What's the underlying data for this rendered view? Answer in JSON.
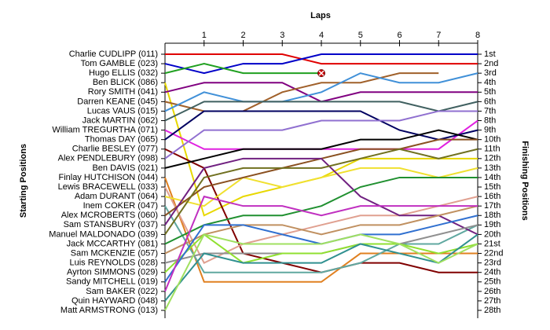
{
  "chart_data": {
    "type": "line",
    "x_title": "Laps",
    "y_title": "Starting Positions",
    "y2_title": "Finishing Positions",
    "x": [
      0,
      1,
      2,
      3,
      4,
      5,
      6,
      7,
      8
    ],
    "xlim": [
      0,
      8
    ],
    "xticks": [
      1,
      2,
      3,
      4,
      5,
      6,
      7,
      8
    ],
    "ylim": [
      28,
      1
    ],
    "yticks": [
      {
        "value": 1,
        "label": "Charlie CUDLIPP (011)"
      },
      {
        "value": 2,
        "label": "Tom GAMBLE (023)"
      },
      {
        "value": 3,
        "label": "Hugo ELLIS (032)"
      },
      {
        "value": 4,
        "label": "Ben BLICK (086)"
      },
      {
        "value": 5,
        "label": "Rory SMITH (041)"
      },
      {
        "value": 6,
        "label": "Darren KEANE (045)"
      },
      {
        "value": 7,
        "label": "Lucas VAUS (015)"
      },
      {
        "value": 8,
        "label": "Jack MARTIN (062)"
      },
      {
        "value": 9,
        "label": "William TREGURTHA (071)"
      },
      {
        "value": 10,
        "label": "Thomas DAY (065)"
      },
      {
        "value": 11,
        "label": "Charlie BESLEY (077)"
      },
      {
        "value": 12,
        "label": "Alex PENDLEBURY (098)"
      },
      {
        "value": 13,
        "label": "Ben DAVIS (021)"
      },
      {
        "value": 14,
        "label": "Finlay HUTCHISON (044)"
      },
      {
        "value": 15,
        "label": "Lewis BRACEWELL (033)"
      },
      {
        "value": 16,
        "label": "Adam DURANT (064)"
      },
      {
        "value": 17,
        "label": "Inem COKER (047)"
      },
      {
        "value": 18,
        "label": "Alex MCROBERTS (060)"
      },
      {
        "value": 19,
        "label": "Sam STANSBURY (037)"
      },
      {
        "value": 20,
        "label": "Manuel MALDONADO (039)"
      },
      {
        "value": 21,
        "label": "Jack MCCARTHY (081)"
      },
      {
        "value": 22,
        "label": "Sam MCKENZIE (057)"
      },
      {
        "value": 23,
        "label": "Luis REYNOLDS (028)"
      },
      {
        "value": 24,
        "label": "Ayrton SIMMONS (029)"
      },
      {
        "value": 25,
        "label": "Sandy MITCHELL (019)"
      },
      {
        "value": 26,
        "label": "Sam BAKER (022)"
      },
      {
        "value": 27,
        "label": "Quin HAYWARD (048)"
      },
      {
        "value": 28,
        "label": "Matt ARMSTRONG (013)"
      }
    ],
    "y2ticks": [
      {
        "value": 1,
        "label": "1st"
      },
      {
        "value": 2,
        "label": "2nd"
      },
      {
        "value": 3,
        "label": "3rd"
      },
      {
        "value": 4,
        "label": "4th"
      },
      {
        "value": 5,
        "label": "5th"
      },
      {
        "value": 6,
        "label": "6th"
      },
      {
        "value": 7,
        "label": "7th"
      },
      {
        "value": 8,
        "label": "8th"
      },
      {
        "value": 9,
        "label": "9th"
      },
      {
        "value": 10,
        "label": "10th"
      },
      {
        "value": 11,
        "label": "11th"
      },
      {
        "value": 12,
        "label": "12th"
      },
      {
        "value": 13,
        "label": "13th"
      },
      {
        "value": 14,
        "label": "14th"
      },
      {
        "value": 15,
        "label": "15th"
      },
      {
        "value": 16,
        "label": "16th"
      },
      {
        "value": 17,
        "label": "17th"
      },
      {
        "value": 18,
        "label": "18th"
      },
      {
        "value": 19,
        "label": "19th"
      },
      {
        "value": 20,
        "label": "20th"
      },
      {
        "value": 21,
        "label": "21st"
      },
      {
        "value": 22,
        "label": "22nd"
      },
      {
        "value": 23,
        "label": "23rd"
      },
      {
        "value": 24,
        "label": "24th"
      },
      {
        "value": 25,
        "label": "25th"
      },
      {
        "value": 26,
        "label": "26th"
      },
      {
        "value": 27,
        "label": "27th"
      },
      {
        "value": 28,
        "label": "28th"
      }
    ],
    "series": [
      {
        "color": "#e00000",
        "values": [
          1,
          1,
          1,
          1,
          2,
          2,
          2,
          2,
          2
        ]
      },
      {
        "color": "#0000c8",
        "values": [
          2,
          3,
          2,
          2,
          1,
          1,
          1,
          1,
          1
        ]
      },
      {
        "color": "#20a020",
        "values": [
          3,
          2,
          3,
          3,
          3,
          null,
          null,
          null,
          null
        ],
        "retired": true
      },
      {
        "color": "#e8d800",
        "values": [
          4,
          18,
          16,
          15,
          14,
          12,
          12,
          12,
          12
        ]
      },
      {
        "color": "#800080",
        "values": [
          5,
          4,
          4,
          4,
          6,
          5,
          5,
          5,
          5
        ]
      },
      {
        "color": "#a0602a",
        "values": [
          6,
          7,
          7,
          5,
          4,
          4,
          3,
          3,
          null
        ]
      },
      {
        "color": "#4090d8",
        "values": [
          7,
          5,
          6,
          6,
          5,
          3,
          4,
          4,
          3
        ]
      },
      {
        "color": "#406060",
        "values": [
          8,
          6,
          6,
          6,
          6,
          6,
          6,
          7,
          6
        ]
      },
      {
        "color": "#e020e0",
        "values": [
          9,
          11,
          11,
          11,
          11,
          11,
          11,
          11,
          8
        ]
      },
      {
        "color": "#000060",
        "values": [
          10,
          7,
          7,
          7,
          7,
          7,
          9,
          10,
          9
        ]
      },
      {
        "color": "#800000",
        "values": [
          11,
          13,
          22,
          23,
          24,
          23,
          23,
          24,
          24
        ]
      },
      {
        "color": "#9070d0",
        "values": [
          12,
          9,
          9,
          9,
          8,
          8,
          8,
          7,
          7
        ]
      },
      {
        "color": "#000000",
        "values": [
          13,
          12,
          11,
          11,
          11,
          10,
          10,
          9,
          10
        ]
      },
      {
        "color": "#e08020",
        "values": [
          14,
          25,
          25,
          25,
          25,
          22,
          22,
          22,
          22
        ]
      },
      {
        "color": "#e0a090",
        "values": [
          15,
          23,
          21,
          20,
          19,
          18,
          18,
          17,
          16
        ]
      },
      {
        "color": "#f0e030",
        "values": [
          16,
          17,
          14,
          15,
          14,
          13,
          13,
          14,
          13
        ]
      },
      {
        "color": "#60a8a0",
        "values": [
          17,
          24,
          24,
          24,
          24,
          23,
          21,
          21,
          19
        ]
      },
      {
        "color": "#8a5020",
        "values": [
          18,
          15,
          14,
          13,
          12,
          11,
          11,
          10,
          10
        ]
      },
      {
        "color": "#702080",
        "values": [
          19,
          13,
          12,
          12,
          12,
          16,
          18,
          18,
          20
        ]
      },
      {
        "color": "#707020",
        "values": [
          20,
          14,
          13,
          13,
          13,
          12,
          11,
          12,
          11
        ]
      },
      {
        "color": "#209030",
        "values": [
          21,
          19,
          18,
          18,
          17,
          15,
          14,
          14,
          14
        ]
      },
      {
        "color": "#c09060",
        "values": [
          22,
          20,
          19,
          19,
          20,
          19,
          19,
          18,
          17
        ]
      },
      {
        "color": "#909090",
        "values": [
          23,
          22,
          22,
          22,
          22,
          21,
          21,
          20,
          19
        ]
      },
      {
        "color": "#90e030",
        "values": [
          24,
          20,
          23,
          22,
          22,
          21,
          21,
          22,
          21
        ]
      },
      {
        "color": "#3070d0",
        "values": [
          25,
          19,
          19,
          20,
          21,
          20,
          20,
          19,
          18
        ]
      },
      {
        "color": "#c030c0",
        "values": [
          26,
          16,
          17,
          17,
          18,
          17,
          17,
          17,
          17
        ]
      },
      {
        "color": "#309090",
        "values": [
          27,
          22,
          23,
          23,
          23,
          21,
          22,
          23,
          20
        ]
      },
      {
        "color": "#a0e060",
        "values": [
          28,
          20,
          21,
          21,
          21,
          20,
          21,
          23,
          21
        ]
      }
    ]
  }
}
